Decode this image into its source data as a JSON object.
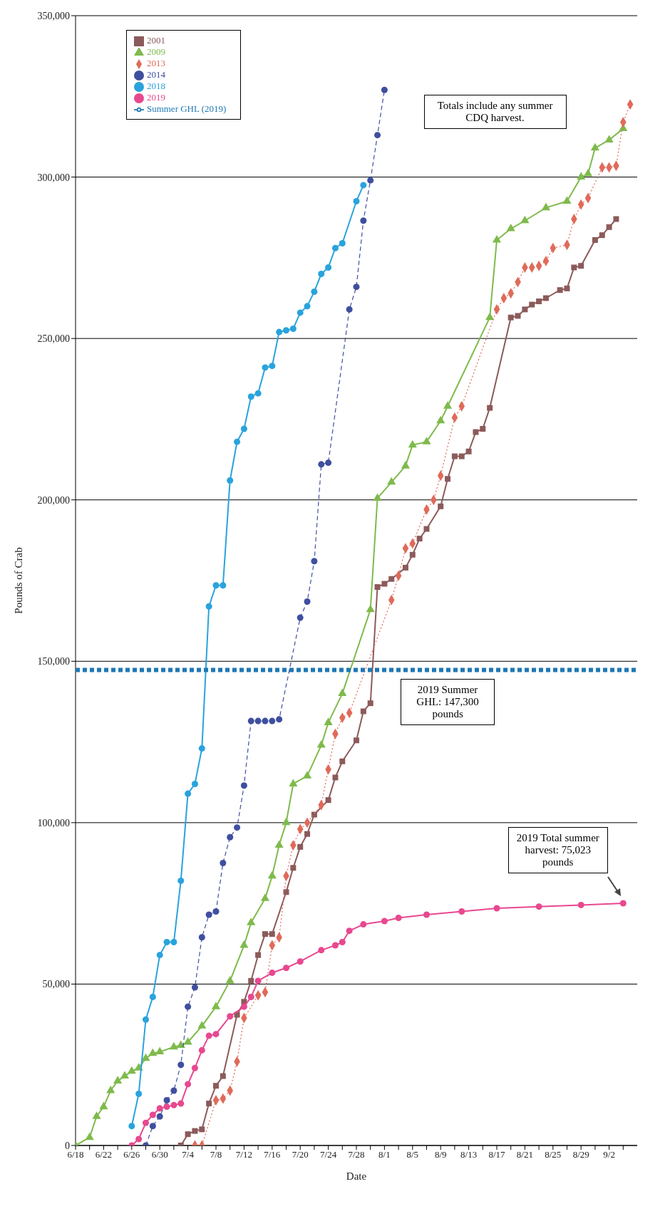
{
  "chart_data": {
    "type": "line",
    "xlabel": "Date",
    "ylabel": "Pounds of Crab",
    "xlim": [
      "--06-18",
      "--09-06"
    ],
    "xticks": [
      {
        "value": "--06-18",
        "label": "6/18"
      },
      {
        "value": "--06-20",
        "label": null
      },
      {
        "value": "--06-22",
        "label": "6/22"
      },
      {
        "value": "--06-24",
        "label": null
      },
      {
        "value": "--06-26",
        "label": "6/26"
      },
      {
        "value": "--06-28",
        "label": null
      },
      {
        "value": "--06-30",
        "label": "6/30"
      },
      {
        "value": "--07-02",
        "label": null
      },
      {
        "value": "--07-04",
        "label": "7/4"
      },
      {
        "value": "--07-06",
        "label": null
      },
      {
        "value": "--07-08",
        "label": "7/8"
      },
      {
        "value": "--07-10",
        "label": null
      },
      {
        "value": "--07-12",
        "label": "7/12"
      },
      {
        "value": "--07-14",
        "label": null
      },
      {
        "value": "--07-16",
        "label": "7/16"
      },
      {
        "value": "--07-18",
        "label": null
      },
      {
        "value": "--07-20",
        "label": "7/20"
      },
      {
        "value": "--07-22",
        "label": null
      },
      {
        "value": "--07-24",
        "label": "7/24"
      },
      {
        "value": "--07-26",
        "label": null
      },
      {
        "value": "--07-28",
        "label": "7/28"
      },
      {
        "value": "--07-30",
        "label": null
      },
      {
        "value": "--08-01",
        "label": "8/1"
      },
      {
        "value": "--08-03",
        "label": null
      },
      {
        "value": "--08-05",
        "label": "8/5"
      },
      {
        "value": "--08-07",
        "label": null
      },
      {
        "value": "--08-09",
        "label": "8/9"
      },
      {
        "value": "--08-11",
        "label": null
      },
      {
        "value": "--08-13",
        "label": "8/13"
      },
      {
        "value": "--08-15",
        "label": null
      },
      {
        "value": "--08-17",
        "label": "8/17"
      },
      {
        "value": "--08-19",
        "label": null
      },
      {
        "value": "--08-21",
        "label": "8/21"
      },
      {
        "value": "--08-23",
        "label": null
      },
      {
        "value": "--08-25",
        "label": "8/25"
      },
      {
        "value": "--08-27",
        "label": null
      },
      {
        "value": "--08-29",
        "label": "8/29"
      },
      {
        "value": "--08-31",
        "label": null
      },
      {
        "value": "--09-02",
        "label": "9/2"
      },
      {
        "value": "--09-04",
        "label": null
      }
    ],
    "ylim": [
      0,
      350000
    ],
    "yticks": [
      0,
      {
        "value": 50000,
        "label": "50,000"
      },
      {
        "value": 100000,
        "label": "100,000"
      },
      {
        "value": 150000,
        "label": "150,000"
      },
      {
        "value": 200000,
        "label": "200,000"
      },
      {
        "value": 250000,
        "label": "250,000"
      },
      {
        "value": 300000,
        "label": "300,000"
      },
      {
        "value": 350000,
        "label": "350,000"
      }
    ],
    "grid": "y",
    "legend": "top left",
    "series": [
      {
        "name": "2001",
        "color": "#8c5a5a",
        "marker": "square",
        "line_style": "solid",
        "x": [
          "--07-03",
          "--07-04",
          "--07-05",
          "--07-06",
          "--07-07",
          "--07-08",
          "--07-09",
          "--07-11",
          "--07-12",
          "--07-13",
          "--07-14",
          "--07-15",
          "--07-16",
          "--07-18",
          "--07-19",
          "--07-20",
          "--07-21",
          "--07-22",
          "--07-24",
          "--07-25",
          "--07-26",
          "--07-28",
          "--07-29",
          "--07-30",
          "--07-31",
          "--08-01",
          "--08-02",
          "--08-04",
          "--08-05",
          "--08-06",
          "--08-07",
          "--08-09",
          "--08-10",
          "--08-11",
          "--08-12",
          "--08-13",
          "--08-14",
          "--08-15",
          "--08-16",
          "--08-19",
          "--08-20",
          "--08-21",
          "--08-22",
          "--08-23",
          "--08-24",
          "--08-26",
          "--08-27",
          "--08-28",
          "--08-29",
          "--08-31",
          "--09-01",
          "--09-02",
          "--09-03"
        ],
        "values": [
          0,
          3500,
          4500,
          5000,
          13000,
          18500,
          21500,
          40500,
          44500,
          51000,
          59000,
          65500,
          65500,
          78500,
          86000,
          92500,
          96500,
          102500,
          107000,
          114000,
          119000,
          125500,
          134500,
          137000,
          173000,
          174000,
          175500,
          179000,
          183000,
          188000,
          191000,
          198000,
          206500,
          213500,
          213500,
          215000,
          221000,
          222000,
          228500,
          256500,
          257000,
          259000,
          260500,
          261500,
          262500,
          265000,
          265500,
          272000,
          272500,
          280500,
          282000,
          284500,
          287000
        ]
      },
      {
        "name": "2009",
        "color": "#7fba4c",
        "marker": "triangle",
        "line_style": "solid",
        "x": [
          "--06-18",
          "--06-20",
          "--06-21",
          "--06-22",
          "--06-23",
          "--06-24",
          "--06-25",
          "--06-26",
          "--06-27",
          "--06-28",
          "--06-29",
          "--06-30",
          "--07-02",
          "--07-03",
          "--07-04",
          "--07-06",
          "--07-08",
          "--07-10",
          "--07-12",
          "--07-13",
          "--07-15",
          "--07-16",
          "--07-17",
          "--07-18",
          "--07-19",
          "--07-21",
          "--07-23",
          "--07-24",
          "--07-26",
          "--07-30",
          "--07-31",
          "--08-02",
          "--08-04",
          "--08-05",
          "--08-07",
          "--08-09",
          "--08-10",
          "--08-16",
          "--08-17",
          "--08-19",
          "--08-21",
          "--08-24",
          "--08-27",
          "--08-29",
          "--08-30",
          "--08-31",
          "--09-02",
          "--09-04"
        ],
        "values": [
          0,
          2500,
          9000,
          12000,
          17000,
          20000,
          21500,
          23000,
          24000,
          27000,
          28500,
          29000,
          30500,
          31000,
          32000,
          37000,
          43000,
          51000,
          62000,
          69000,
          76500,
          83500,
          93000,
          100000,
          112000,
          114500,
          124000,
          131000,
          140000,
          166000,
          200500,
          205500,
          210500,
          217000,
          218000,
          224500,
          229000,
          256500,
          280500,
          284000,
          286500,
          290500,
          292500,
          300000,
          301000,
          309000,
          311500,
          315000
        ]
      },
      {
        "name": "2013",
        "color": "#e06a5a",
        "marker": "diamond",
        "line_style": "dotted",
        "x": [
          "--07-05",
          "--07-06",
          "--07-08",
          "--07-09",
          "--07-10",
          "--07-11",
          "--07-12",
          "--07-14",
          "--07-15",
          "--07-16",
          "--07-17",
          "--07-18",
          "--07-19",
          "--07-20",
          "--07-21",
          "--07-23",
          "--07-24",
          "--07-25",
          "--07-26",
          "--07-27",
          "--08-02",
          "--08-03",
          "--08-04",
          "--08-05",
          "--08-07",
          "--08-08",
          "--08-09",
          "--08-11",
          "--08-12",
          "--08-17",
          "--08-18",
          "--08-19",
          "--08-20",
          "--08-21",
          "--08-22",
          "--08-23",
          "--08-24",
          "--08-25",
          "--08-27",
          "--08-28",
          "--08-29",
          "--08-30",
          "--09-01",
          "--09-02",
          "--09-03",
          "--09-04",
          "--09-05"
        ],
        "values": [
          0,
          0,
          14000,
          14500,
          17000,
          26000,
          39500,
          46500,
          47500,
          62000,
          64500,
          83500,
          93000,
          98000,
          100000,
          105500,
          116500,
          127500,
          132500,
          134000,
          169000,
          176500,
          185000,
          186500,
          197000,
          200000,
          207500,
          225500,
          229000,
          259000,
          262500,
          264000,
          267500,
          272000,
          272000,
          272500,
          274000,
          278000,
          279000,
          287000,
          291500,
          293500,
          303000,
          303000,
          303500,
          317000,
          322500
        ]
      },
      {
        "name": "2014",
        "color": "#3f4f9f",
        "marker": "circle",
        "line_style": "dashed",
        "x": [
          "--06-28",
          "--06-29",
          "--06-30",
          "--07-01",
          "--07-02",
          "--07-03",
          "--07-04",
          "--07-05",
          "--07-06",
          "--07-07",
          "--07-08",
          "--07-09",
          "--07-10",
          "--07-11",
          "--07-12",
          "--07-13",
          "--07-14",
          "--07-15",
          "--07-16",
          "--07-17",
          "--07-20",
          "--07-21",
          "--07-22",
          "--07-23",
          "--07-24",
          "--07-27",
          "--07-28",
          "--07-29",
          "--07-30",
          "--07-31",
          "--08-01"
        ],
        "values": [
          0,
          6000,
          9000,
          14000,
          17000,
          25000,
          43000,
          49000,
          64500,
          71500,
          72500,
          87500,
          95500,
          98500,
          111500,
          131500,
          131500,
          131500,
          131500,
          132000,
          163500,
          168500,
          181000,
          211000,
          211500,
          259000,
          266000,
          286500,
          299000,
          313000,
          327000
        ]
      },
      {
        "name": "2018",
        "color": "#29a3dd",
        "marker": "circle",
        "line_style": "solid",
        "x": [
          "--06-26",
          "--06-27",
          "--06-28",
          "--06-29",
          "--06-30",
          "--07-01",
          "--07-02",
          "--07-03",
          "--07-04",
          "--07-05",
          "--07-06",
          "--07-07",
          "--07-08",
          "--07-09",
          "--07-10",
          "--07-11",
          "--07-12",
          "--07-13",
          "--07-14",
          "--07-15",
          "--07-16",
          "--07-17",
          "--07-18",
          "--07-19",
          "--07-20",
          "--07-21",
          "--07-22",
          "--07-23",
          "--07-24",
          "--07-25",
          "--07-26",
          "--07-28",
          "--07-29"
        ],
        "values": [
          6000,
          16000,
          39000,
          46000,
          59000,
          63000,
          63000,
          82000,
          109000,
          112000,
          123000,
          167000,
          173500,
          173500,
          206000,
          218000,
          222000,
          232000,
          233000,
          241000,
          241500,
          252000,
          252500,
          253000,
          258000,
          260000,
          264500,
          270000,
          272000,
          278000,
          279500,
          292500,
          297500
        ]
      },
      {
        "name": "2019",
        "color": "#e8488f",
        "marker": "circle",
        "line_style": "solid",
        "x": [
          "--06-26",
          "--06-27",
          "--06-28",
          "--06-29",
          "--06-30",
          "--07-01",
          "--07-02",
          "--07-03",
          "--07-04",
          "--07-05",
          "--07-06",
          "--07-07",
          "--07-08",
          "--07-10",
          "--07-12",
          "--07-13",
          "--07-14",
          "--07-16",
          "--07-18",
          "--07-20",
          "--07-23",
          "--07-25",
          "--07-26",
          "--07-27",
          "--07-29",
          "--08-01",
          "--08-03",
          "--08-07",
          "--08-12",
          "--08-17",
          "--08-23",
          "--08-29",
          "--09-04"
        ],
        "values": [
          0,
          2000,
          7000,
          9500,
          11500,
          12000,
          12500,
          13000,
          19000,
          24000,
          29500,
          34000,
          34500,
          40000,
          43000,
          46000,
          51000,
          53500,
          55000,
          57000,
          60500,
          62000,
          63000,
          66500,
          68500,
          69500,
          70500,
          71500,
          72500,
          73500,
          74000,
          74500,
          75023
        ]
      },
      {
        "name": "Summer GHL (2019)",
        "color": "#1f78b4",
        "marker": "none",
        "line_style": "dashed",
        "x": [
          "--06-18",
          "--09-06"
        ],
        "values": [
          147300,
          147300
        ]
      }
    ],
    "annotations": [
      {
        "text": "2019 Summer GHL: 147,300 pounds",
        "x": "--08-10",
        "y": 147300
      },
      "Totals include any summer CDQ harvest.",
      "2019 Total summer harvest: 75,023 pounds"
    ]
  }
}
